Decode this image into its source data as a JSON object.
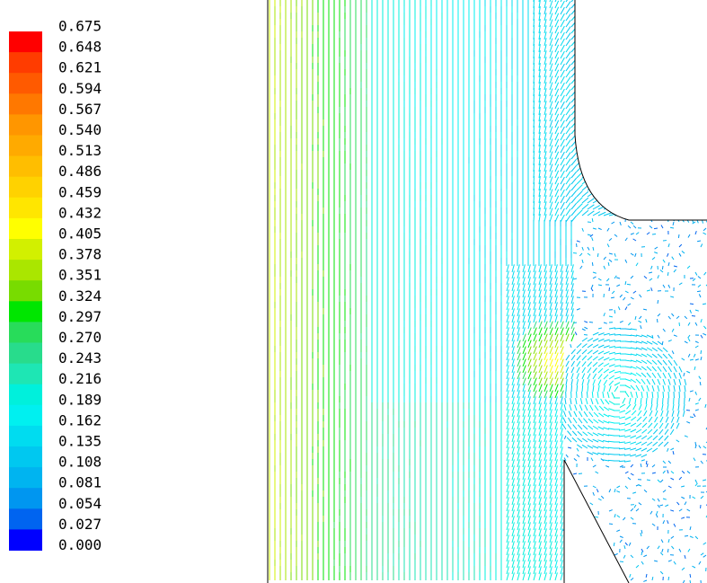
{
  "colorbar": {
    "labels": [
      "0.675",
      "0.648",
      "0.621",
      "0.594",
      "0.567",
      "0.540",
      "0.513",
      "0.486",
      "0.459",
      "0.432",
      "0.405",
      "0.378",
      "0.351",
      "0.324",
      "0.297",
      "0.270",
      "0.243",
      "0.216",
      "0.189",
      "0.162",
      "0.135",
      "0.108",
      "0.081",
      "0.054",
      "0.027",
      "0.000"
    ],
    "colors": [
      "#ff0000",
      "#ff3c00",
      "#ff5a00",
      "#ff7800",
      "#ff9600",
      "#ffaa00",
      "#ffbe00",
      "#ffd200",
      "#ffe600",
      "#ffff00",
      "#d2f000",
      "#aae600",
      "#78dc00",
      "#00e600",
      "#28dc5a",
      "#28dc8c",
      "#1ee6b4",
      "#00f0dc",
      "#00f0f0",
      "#00dcf0",
      "#00c8f0",
      "#00b4f0",
      "#0096f0",
      "#0064f0",
      "#0000ff"
    ]
  }
}
